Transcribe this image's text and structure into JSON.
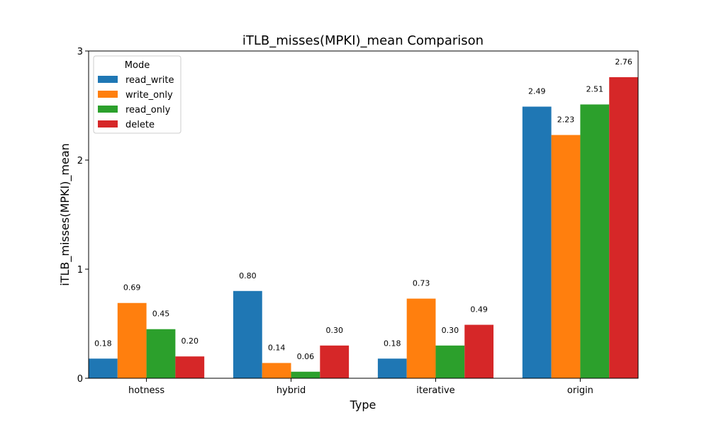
{
  "chart_data": {
    "type": "bar",
    "title": "iTLB_misses(MPKI)_mean Comparison",
    "xlabel": "Type",
    "ylabel": "iTLB_misses(MPKI)_mean",
    "categories": [
      "hotness",
      "hybrid",
      "iterative",
      "origin"
    ],
    "ylim": [
      0,
      3
    ],
    "yticks": [
      0,
      1,
      2,
      3
    ],
    "grid": false,
    "legend": {
      "title": "Mode",
      "placement": "top-left"
    },
    "series": [
      {
        "name": "read_write",
        "color": "#1f77b4",
        "values": [
          0.18,
          0.8,
          0.18,
          2.49
        ],
        "labels": [
          "0.18",
          "0.80",
          "0.18",
          "2.49"
        ]
      },
      {
        "name": "write_only",
        "color": "#ff7f0e",
        "values": [
          0.69,
          0.14,
          0.73,
          2.23
        ],
        "labels": [
          "0.69",
          "0.14",
          "0.73",
          "2.23"
        ]
      },
      {
        "name": "read_only",
        "color": "#2ca02c",
        "values": [
          0.45,
          0.06,
          0.3,
          2.51
        ],
        "labels": [
          "0.45",
          "0.06",
          "0.30",
          "2.51"
        ]
      },
      {
        "name": "delete",
        "color": "#d62728",
        "values": [
          0.2,
          0.3,
          0.49,
          2.76
        ],
        "labels": [
          "0.20",
          "0.30",
          "0.49",
          "2.76"
        ]
      }
    ]
  }
}
